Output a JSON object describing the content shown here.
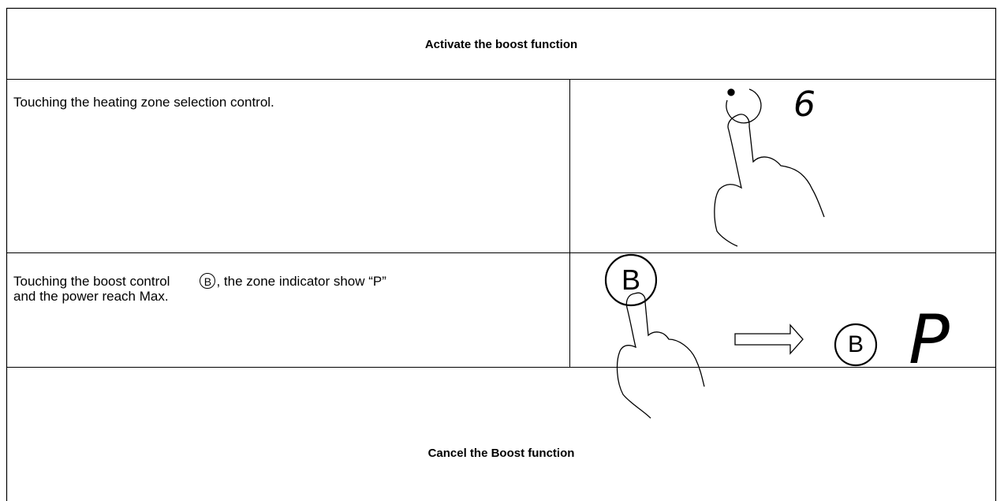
{
  "table": {
    "rows": [
      {
        "heading": "Activate the boost function"
      },
      {
        "text": "Touching the heating zone selection control.",
        "figure": {
          "display": "6"
        }
      },
      {
        "text_start": "Touching the boost control",
        "icon": "B",
        "text_end": ", the zone indicator show “P”",
        "text_line2": "and the power reach Max.",
        "figure": {
          "button": "B",
          "indicator": "B",
          "display": "P"
        }
      },
      {
        "heading": "Cancel the Boost function"
      }
    ]
  }
}
